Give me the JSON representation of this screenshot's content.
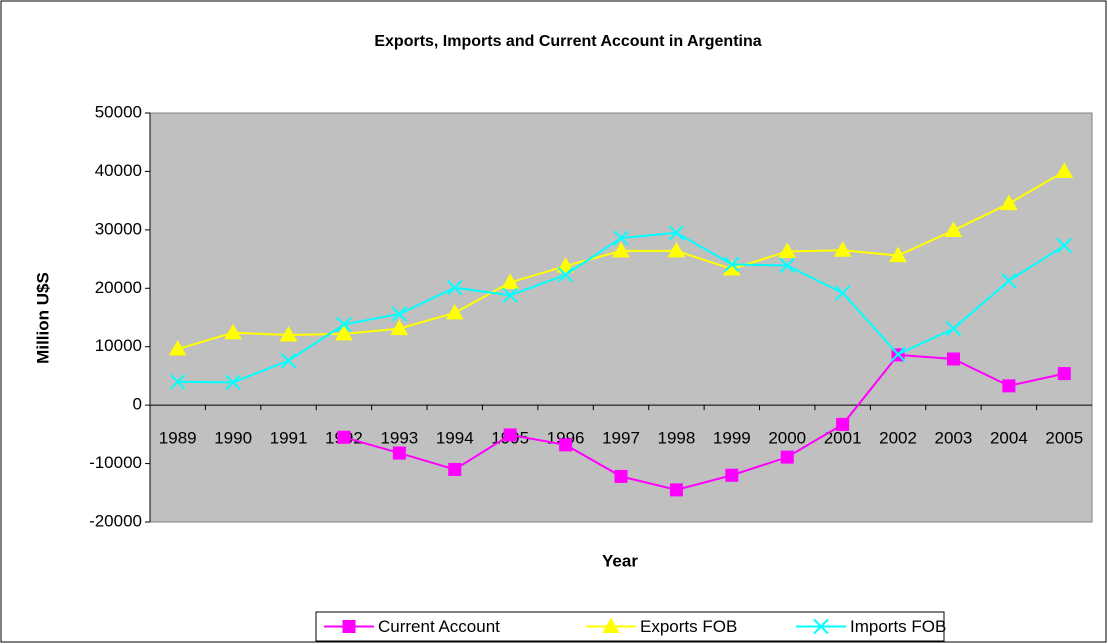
{
  "chart_data": {
    "type": "line",
    "title": "Exports, Imports and Current Account in Argentina",
    "xlabel": "Year",
    "ylabel": "Million U$S",
    "categories": [
      "1989",
      "1990",
      "1991",
      "1992",
      "1993",
      "1994",
      "1995",
      "1996",
      "1997",
      "1998",
      "1999",
      "2000",
      "2001",
      "2002",
      "2003",
      "2004",
      "2005"
    ],
    "series": [
      {
        "name": "Current Account",
        "color": "#ff00ff",
        "marker": "square",
        "values": [
          null,
          null,
          null,
          -5500,
          -8200,
          -11000,
          -5100,
          -6800,
          -12200,
          -14500,
          -12000,
          -8900,
          -3300,
          8600,
          7900,
          3300,
          5400
        ]
      },
      {
        "name": "Exports FOB",
        "color": "#ffff00",
        "marker": "triangle",
        "values": [
          9600,
          12400,
          12000,
          12200,
          13100,
          15800,
          21000,
          23800,
          26400,
          26400,
          23300,
          26300,
          26500,
          25600,
          29900,
          34500,
          40000
        ]
      },
      {
        "name": "Imports FOB",
        "color": "#00ffff",
        "marker": "x",
        "values": [
          4000,
          3900,
          7600,
          13800,
          15600,
          20100,
          18800,
          22300,
          28600,
          29500,
          24100,
          23900,
          19200,
          8700,
          13100,
          21300,
          27300
        ]
      }
    ],
    "ylim": [
      -20000,
      50000
    ],
    "yticks": [
      -20000,
      -10000,
      0,
      10000,
      20000,
      30000,
      40000,
      50000
    ],
    "grid": false,
    "legend": "bottom",
    "plot_background": "#c0c0c0"
  }
}
